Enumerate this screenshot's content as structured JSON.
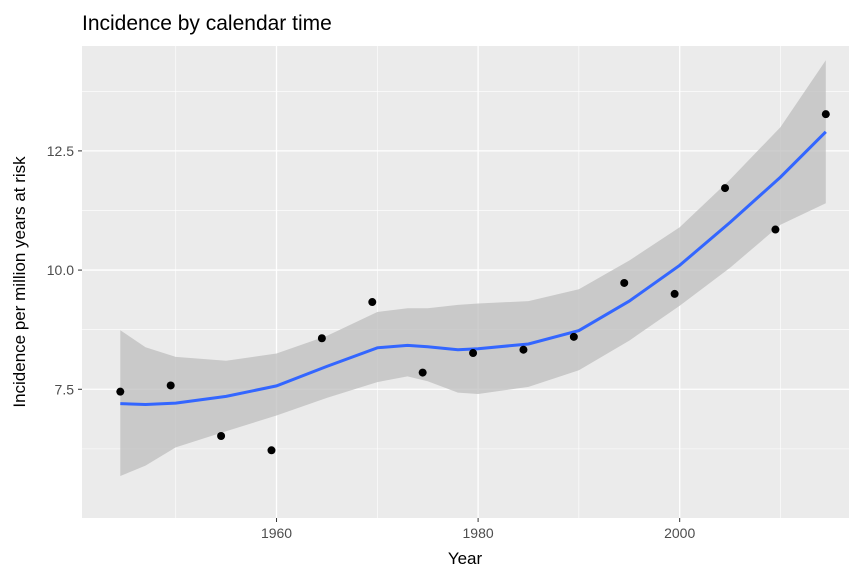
{
  "chart_data": {
    "type": "scatter",
    "title": "Incidence by calendar time",
    "xlabel": "Year",
    "ylabel": "Incidence per million years at risk",
    "xlim": [
      1940.7,
      2016.8
    ],
    "ylim": [
      4.8,
      14.7
    ],
    "x_ticks": [
      1960,
      1980,
      2000
    ],
    "x_minor_ticks": [
      1950,
      1970,
      1990,
      2010
    ],
    "y_ticks": [
      7.5,
      10.0,
      12.5
    ],
    "y_tick_labels": [
      "7.5",
      "10.0",
      "12.5"
    ],
    "y_minor_ticks": [
      6.25,
      8.75,
      11.25,
      13.75
    ],
    "grid": true,
    "points": {
      "x": [
        1944.5,
        1949.5,
        1954.5,
        1959.5,
        1964.5,
        1969.5,
        1974.5,
        1979.5,
        1984.5,
        1989.5,
        1994.5,
        1999.5,
        2004.5,
        2009.5,
        2014.5
      ],
      "y": [
        7.45,
        7.58,
        6.52,
        6.22,
        8.57,
        9.33,
        7.85,
        8.26,
        8.33,
        8.6,
        9.73,
        9.5,
        11.72,
        10.85,
        13.27
      ]
    },
    "smooth": {
      "x": [
        1944.5,
        1947.0,
        1950.0,
        1955.0,
        1960.0,
        1965.0,
        1970.0,
        1973.0,
        1975.0,
        1978.0,
        1980.0,
        1985.0,
        1990.0,
        1995.0,
        2000.0,
        2005.0,
        2010.0,
        2014.5
      ],
      "y": [
        7.2,
        7.18,
        7.21,
        7.35,
        7.57,
        7.98,
        8.37,
        8.42,
        8.39,
        8.33,
        8.35,
        8.45,
        8.73,
        9.35,
        10.1,
        11.0,
        11.95,
        12.9
      ],
      "lower": [
        5.68,
        5.9,
        6.28,
        6.62,
        6.95,
        7.32,
        7.65,
        7.77,
        7.67,
        7.43,
        7.4,
        7.55,
        7.9,
        8.52,
        9.25,
        10.05,
        10.95,
        11.4
      ],
      "upper": [
        8.74,
        8.38,
        8.18,
        8.1,
        8.25,
        8.62,
        9.12,
        9.2,
        9.2,
        9.27,
        9.3,
        9.35,
        9.6,
        10.2,
        10.9,
        11.9,
        13.0,
        14.4
      ],
      "line_color": "#3366ff",
      "band_color": "#bebebe"
    },
    "point_color": "#000000",
    "panel_background": "#ebebeb",
    "grid_color": "#ffffff"
  }
}
